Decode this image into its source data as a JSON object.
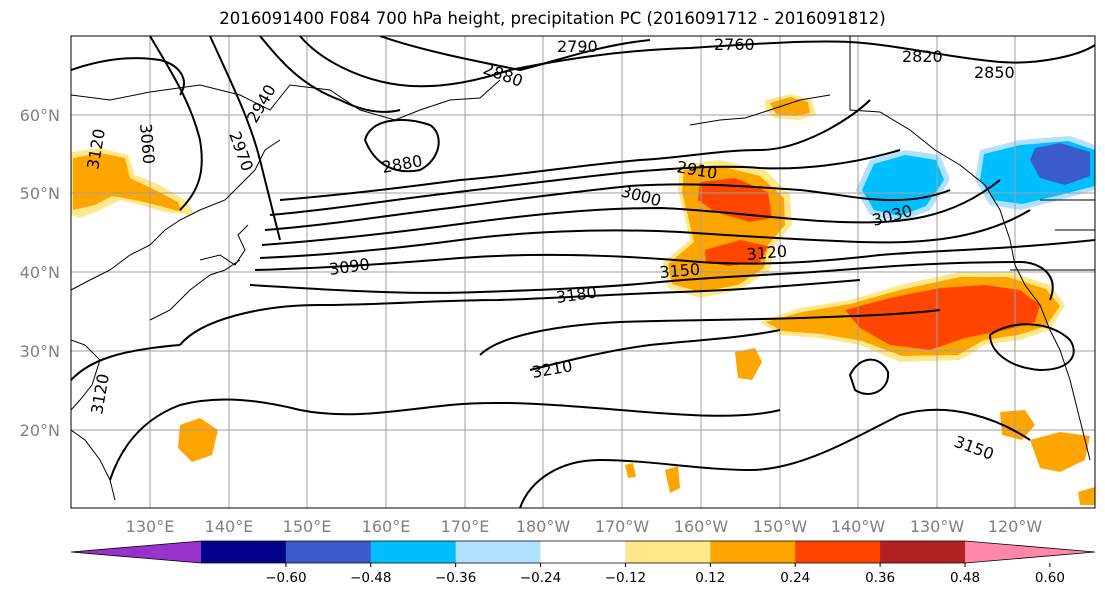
{
  "title": "2016091400 F084 700 hPa height, precipitation PC (2016091712 - 2016091812)",
  "map": {
    "lat_labels": [
      "60°N",
      "50°N",
      "40°N",
      "30°N",
      "20°N"
    ],
    "lon_labels": [
      "130°E",
      "140°E",
      "150°E",
      "160°E",
      "170°E",
      "180°W",
      "170°W",
      "160°W",
      "150°W",
      "140°W",
      "130°W",
      "120°W"
    ],
    "contour_labels": [
      "2790",
      "2760",
      "2820",
      "2850",
      "2880",
      "2940",
      "2970",
      "3120",
      "3060",
      "2880",
      "2910",
      "3000",
      "3030",
      "3090",
      "3120",
      "3150",
      "3180",
      "3210",
      "3120",
      "3150"
    ],
    "grid": true,
    "coastline_color": "#000000",
    "contour_color": "#000000"
  },
  "colorbar": {
    "ticks": [
      "−0.60",
      "−0.48",
      "−0.36",
      "−0.24",
      "−0.12",
      "0.12",
      "0.24",
      "0.36",
      "0.48",
      "0.60"
    ],
    "colors": [
      "#9932CC",
      "#00008B",
      "#3A5BC9",
      "#00BFFF",
      "#B0E2FF",
      "#FFFFFF",
      "#FFE88A",
      "#FFA500",
      "#FF4500",
      "#B22222",
      "#FF88AA"
    ]
  }
}
